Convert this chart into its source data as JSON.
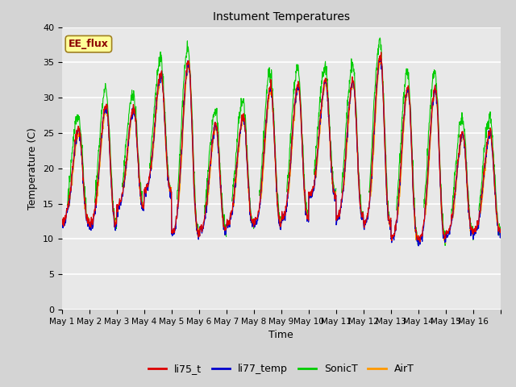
{
  "title": "Instument Temperatures",
  "xlabel": "Time",
  "ylabel": "Temperature (C)",
  "ylim": [
    0,
    40
  ],
  "yticks": [
    0,
    5,
    10,
    15,
    20,
    25,
    30,
    35,
    40
  ],
  "fig_facecolor": "#d4d4d4",
  "plot_bg_color": "#e8e8e8",
  "annotation_text": "EE_flux",
  "annotation_color": "#8b0000",
  "annotation_bg": "#ffff99",
  "annotation_border": "#a08020",
  "series_colors": {
    "li75_t": "#dd0000",
    "li77_temp": "#0000cc",
    "SonicT": "#00cc00",
    "AirT": "#ff9900"
  },
  "x_tick_labels": [
    "May 1",
    "May 2",
    "May 3",
    "May 4",
    "May 5",
    "May 6",
    "May 7",
    "May 8",
    "May 9",
    "May 10",
    "May 11",
    "May 12",
    "May 13",
    "May 14",
    "May 15",
    "May 16"
  ],
  "n_days": 16,
  "samples_per_day": 96,
  "daily_mins": [
    12.5,
    12.2,
    14.8,
    17.0,
    11.0,
    11.2,
    12.2,
    12.5,
    13.2,
    16.2,
    13.2,
    12.2,
    10.2,
    10.0,
    11.0,
    11.2
  ],
  "daily_maxes": [
    25.5,
    29.0,
    28.5,
    33.5,
    35.0,
    26.2,
    27.5,
    31.5,
    32.0,
    32.5,
    32.5,
    36.0,
    31.5,
    31.5,
    25.0,
    25.2
  ],
  "sonic_extra": 2.0,
  "legend_labels": [
    "li75_t",
    "li77_temp",
    "SonicT",
    "AirT"
  ]
}
